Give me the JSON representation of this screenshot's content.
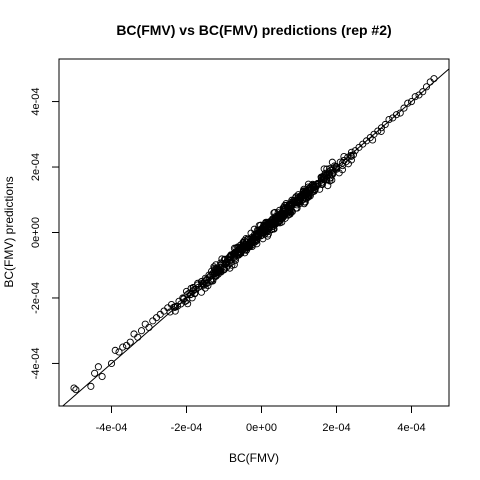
{
  "chart_data": {
    "type": "scatter",
    "title": "BC(FMV) vs BC(FMV) predictions (rep #2)",
    "xlabel": "BC(FMV)",
    "ylabel": "BC(FMV) predictions",
    "xlim": [
      -0.00054,
      0.0005
    ],
    "ylim": [
      -0.00053,
      0.00053
    ],
    "x_ticks": [
      -0.0004,
      -0.0002,
      0.0,
      0.0002,
      0.0004
    ],
    "x_tick_labels": [
      "-4e-04",
      "-2e-04",
      "0e+00",
      "2e-04",
      "4e-04"
    ],
    "y_ticks": [
      -0.0004,
      -0.0002,
      0.0,
      0.0002,
      0.0004
    ],
    "y_tick_labels": [
      "-4e-04",
      "-2e-04",
      "0e+00",
      "2e-04",
      "4e-04"
    ],
    "reference_line": {
      "intercept": 0,
      "slope": 1
    },
    "grid": false,
    "marker": "open-circle",
    "n_points": 620,
    "x": [
      -0.0005,
      -0.000495,
      -0.000455,
      -0.000445,
      -0.000435,
      -0.000425,
      -0.0004,
      -0.00039,
      -0.00038,
      -0.00037,
      -0.00036,
      -0.00035,
      -0.00034,
      -0.00033,
      -0.00032,
      -0.00031,
      -0.0003,
      -0.00029,
      -0.00028,
      -0.00027,
      -0.00026,
      -0.00025,
      -0.00024,
      -0.00023,
      -0.00022,
      -0.00021,
      -0.0002,
      -0.00019,
      -0.00018,
      -0.00017,
      -0.00016,
      -0.00015,
      -0.00014,
      -0.00013,
      -0.00012,
      -0.00011,
      -0.0001,
      -9e-05,
      -8e-05,
      -7e-05,
      -6e-05,
      -5e-05,
      -4e-05,
      -3e-05,
      -2e-05,
      -1e-05,
      0.0,
      1e-05,
      2e-05,
      3e-05,
      4e-05,
      5e-05,
      6e-05,
      7e-05,
      8e-05,
      9e-05,
      0.0001,
      0.00011,
      0.00012,
      0.00013,
      0.00014,
      0.00015,
      0.00016,
      0.00017,
      0.00018,
      0.00019,
      0.0002,
      0.00021,
      0.00022,
      0.00023,
      0.00024,
      0.00025,
      0.00026,
      0.00027,
      0.00028,
      0.00029,
      0.0003,
      0.00031,
      0.00032,
      0.00033,
      0.00034,
      0.00035,
      0.00036,
      0.00037,
      0.00038,
      0.00039,
      0.0004,
      0.00041,
      0.00042,
      0.00043,
      0.00044,
      0.00045,
      0.00046
    ],
    "y": [
      -0.000475,
      -0.00048,
      -0.00047,
      -0.00043,
      -0.00041,
      -0.00044,
      -0.0004,
      -0.00036,
      -0.000365,
      -0.00035,
      -0.000345,
      -0.000335,
      -0.00031,
      -0.00032,
      -0.0003,
      -0.00028,
      -0.00029,
      -0.00027,
      -0.00026,
      -0.00025,
      -0.00024,
      -0.00023,
      -0.00022,
      -0.00024,
      -0.00021,
      -0.0002,
      -0.00018,
      -0.00019,
      -0.000175,
      -0.00016,
      -0.00015,
      -0.00014,
      -0.00013,
      -0.000125,
      -0.00011,
      -0.0001,
      -9.5e-05,
      -8e-05,
      -7e-05,
      -6.5e-05,
      -5e-05,
      -4.5e-05,
      -3e-05,
      -2e-05,
      -1.5e-05,
      -5e-06,
      5e-06,
      1e-05,
      2.5e-05,
      3e-05,
      4e-05,
      5.5e-05,
      6e-05,
      7.5e-05,
      8e-05,
      9.5e-05,
      0.0001,
      0.000115,
      0.00012,
      0.00013,
      0.000145,
      0.00015,
      0.00016,
      0.000175,
      0.00018,
      0.00019,
      0.0002,
      0.000215,
      0.00022,
      0.00023,
      0.000245,
      0.00025,
      0.00026,
      0.00027,
      0.00028,
      0.00029,
      0.0003,
      0.00031,
      0.00032,
      0.00033,
      0.000345,
      0.00035,
      0.00036,
      0.000365,
      0.00038,
      0.000395,
      0.0004,
      0.000415,
      0.00042,
      0.00043,
      0.000445,
      0.00046,
      0.00047
    ]
  }
}
